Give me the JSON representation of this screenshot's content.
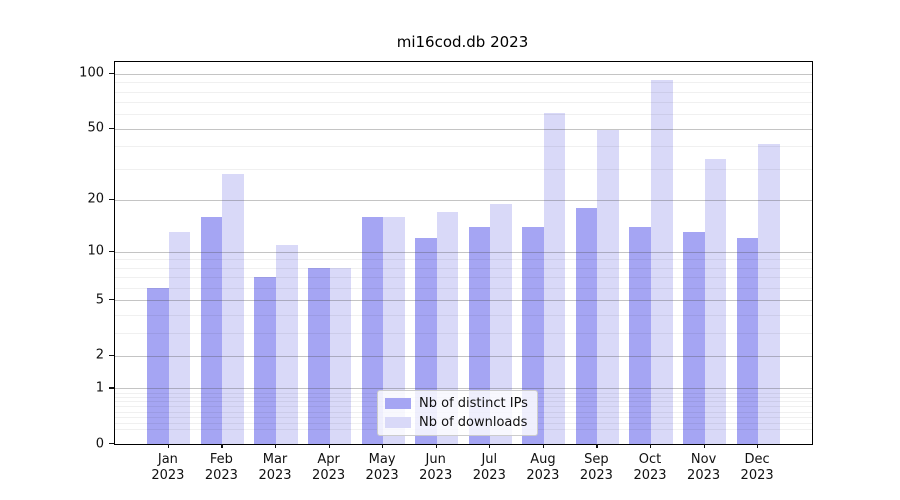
{
  "chart_data": {
    "type": "bar",
    "title": "mi16cod.db 2023",
    "categories": [
      "Jan",
      "Feb",
      "Mar",
      "Apr",
      "May",
      "Jun",
      "Jul",
      "Aug",
      "Sep",
      "Oct",
      "Nov",
      "Dec"
    ],
    "category_year": "2023",
    "series": [
      {
        "name": "Nb of distinct IPs",
        "color": "#a5a5f3",
        "values": [
          6,
          16,
          7,
          8,
          16,
          12,
          14,
          14,
          18,
          14,
          13,
          12
        ]
      },
      {
        "name": "Nb of downloads",
        "color": "#d9d9f8",
        "values": [
          13,
          28,
          11,
          8,
          16,
          17,
          19,
          61,
          49,
          93,
          34,
          41
        ]
      }
    ],
    "y_axis": {
      "ticks": [
        0,
        1,
        2,
        5,
        10,
        20,
        50,
        100
      ],
      "scale": "log(value+1)",
      "top_value": 116
    },
    "x_axis": {
      "tick_label_format": "month over year"
    },
    "grid": true,
    "legend": {
      "position": "bottom-center"
    }
  }
}
